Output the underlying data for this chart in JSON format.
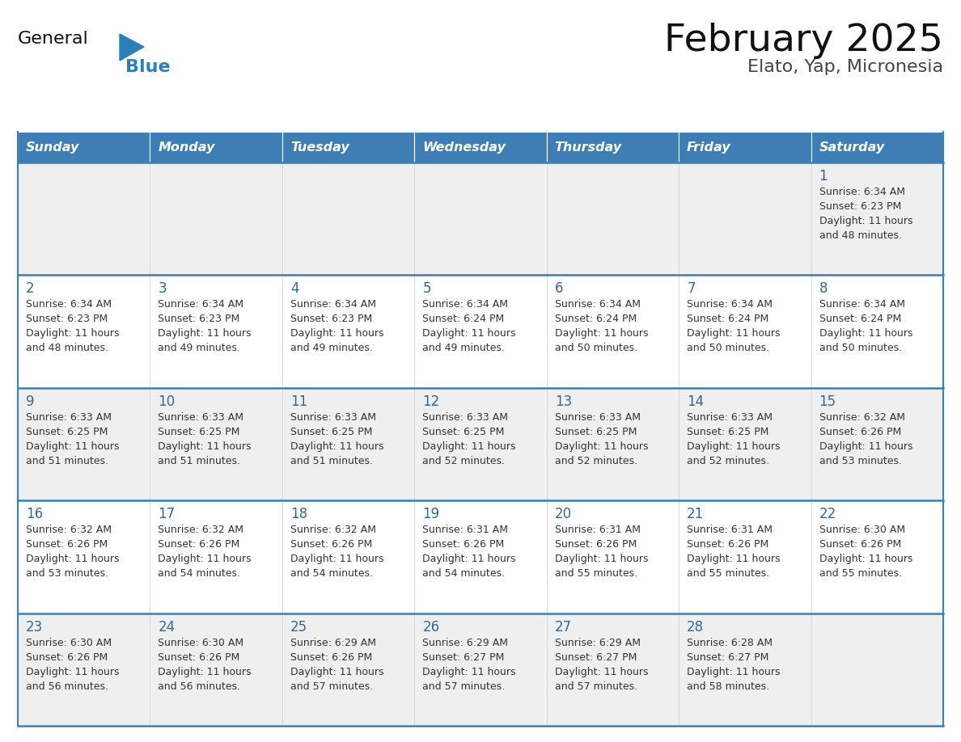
{
  "title": "February 2025",
  "subtitle": "Elato, Yap, Micronesia",
  "days_of_week": [
    "Sunday",
    "Monday",
    "Tuesday",
    "Wednesday",
    "Thursday",
    "Friday",
    "Saturday"
  ],
  "header_bg_color": "#3F7DB5",
  "header_text_color": "#FFFFFF",
  "row_bg_odd": "#EFEFEF",
  "row_bg_even": "#FFFFFF",
  "day_number_color": "#336699",
  "info_text_color": "#333333",
  "row_separator_color": "#3F7DB5",
  "cell_separator_color": "#CCCCCC",
  "title_color": "#111111",
  "subtitle_color": "#444444",
  "logo_color_general": "#111111",
  "logo_color_blue": "#2980B9",
  "logo_triangle_color": "#2980B9",
  "calendar": [
    [
      null,
      null,
      null,
      null,
      null,
      null,
      {
        "day": 1,
        "sunrise": "6:34 AM",
        "sunset": "6:23 PM",
        "daylight_suffix": "48 minutes."
      }
    ],
    [
      {
        "day": 2,
        "sunrise": "6:34 AM",
        "sunset": "6:23 PM",
        "daylight_suffix": "48 minutes."
      },
      {
        "day": 3,
        "sunrise": "6:34 AM",
        "sunset": "6:23 PM",
        "daylight_suffix": "49 minutes."
      },
      {
        "day": 4,
        "sunrise": "6:34 AM",
        "sunset": "6:23 PM",
        "daylight_suffix": "49 minutes."
      },
      {
        "day": 5,
        "sunrise": "6:34 AM",
        "sunset": "6:24 PM",
        "daylight_suffix": "49 minutes."
      },
      {
        "day": 6,
        "sunrise": "6:34 AM",
        "sunset": "6:24 PM",
        "daylight_suffix": "50 minutes."
      },
      {
        "day": 7,
        "sunrise": "6:34 AM",
        "sunset": "6:24 PM",
        "daylight_suffix": "50 minutes."
      },
      {
        "day": 8,
        "sunrise": "6:34 AM",
        "sunset": "6:24 PM",
        "daylight_suffix": "50 minutes."
      }
    ],
    [
      {
        "day": 9,
        "sunrise": "6:33 AM",
        "sunset": "6:25 PM",
        "daylight_suffix": "51 minutes."
      },
      {
        "day": 10,
        "sunrise": "6:33 AM",
        "sunset": "6:25 PM",
        "daylight_suffix": "51 minutes."
      },
      {
        "day": 11,
        "sunrise": "6:33 AM",
        "sunset": "6:25 PM",
        "daylight_suffix": "51 minutes."
      },
      {
        "day": 12,
        "sunrise": "6:33 AM",
        "sunset": "6:25 PM",
        "daylight_suffix": "52 minutes."
      },
      {
        "day": 13,
        "sunrise": "6:33 AM",
        "sunset": "6:25 PM",
        "daylight_suffix": "52 minutes."
      },
      {
        "day": 14,
        "sunrise": "6:33 AM",
        "sunset": "6:25 PM",
        "daylight_suffix": "52 minutes."
      },
      {
        "day": 15,
        "sunrise": "6:32 AM",
        "sunset": "6:26 PM",
        "daylight_suffix": "53 minutes."
      }
    ],
    [
      {
        "day": 16,
        "sunrise": "6:32 AM",
        "sunset": "6:26 PM",
        "daylight_suffix": "53 minutes."
      },
      {
        "day": 17,
        "sunrise": "6:32 AM",
        "sunset": "6:26 PM",
        "daylight_suffix": "54 minutes."
      },
      {
        "day": 18,
        "sunrise": "6:32 AM",
        "sunset": "6:26 PM",
        "daylight_suffix": "54 minutes."
      },
      {
        "day": 19,
        "sunrise": "6:31 AM",
        "sunset": "6:26 PM",
        "daylight_suffix": "54 minutes."
      },
      {
        "day": 20,
        "sunrise": "6:31 AM",
        "sunset": "6:26 PM",
        "daylight_suffix": "55 minutes."
      },
      {
        "day": 21,
        "sunrise": "6:31 AM",
        "sunset": "6:26 PM",
        "daylight_suffix": "55 minutes."
      },
      {
        "day": 22,
        "sunrise": "6:30 AM",
        "sunset": "6:26 PM",
        "daylight_suffix": "55 minutes."
      }
    ],
    [
      {
        "day": 23,
        "sunrise": "6:30 AM",
        "sunset": "6:26 PM",
        "daylight_suffix": "56 minutes."
      },
      {
        "day": 24,
        "sunrise": "6:30 AM",
        "sunset": "6:26 PM",
        "daylight_suffix": "56 minutes."
      },
      {
        "day": 25,
        "sunrise": "6:29 AM",
        "sunset": "6:26 PM",
        "daylight_suffix": "57 minutes."
      },
      {
        "day": 26,
        "sunrise": "6:29 AM",
        "sunset": "6:27 PM",
        "daylight_suffix": "57 minutes."
      },
      {
        "day": 27,
        "sunrise": "6:29 AM",
        "sunset": "6:27 PM",
        "daylight_suffix": "57 minutes."
      },
      {
        "day": 28,
        "sunrise": "6:28 AM",
        "sunset": "6:27 PM",
        "daylight_suffix": "58 minutes."
      },
      null
    ]
  ]
}
